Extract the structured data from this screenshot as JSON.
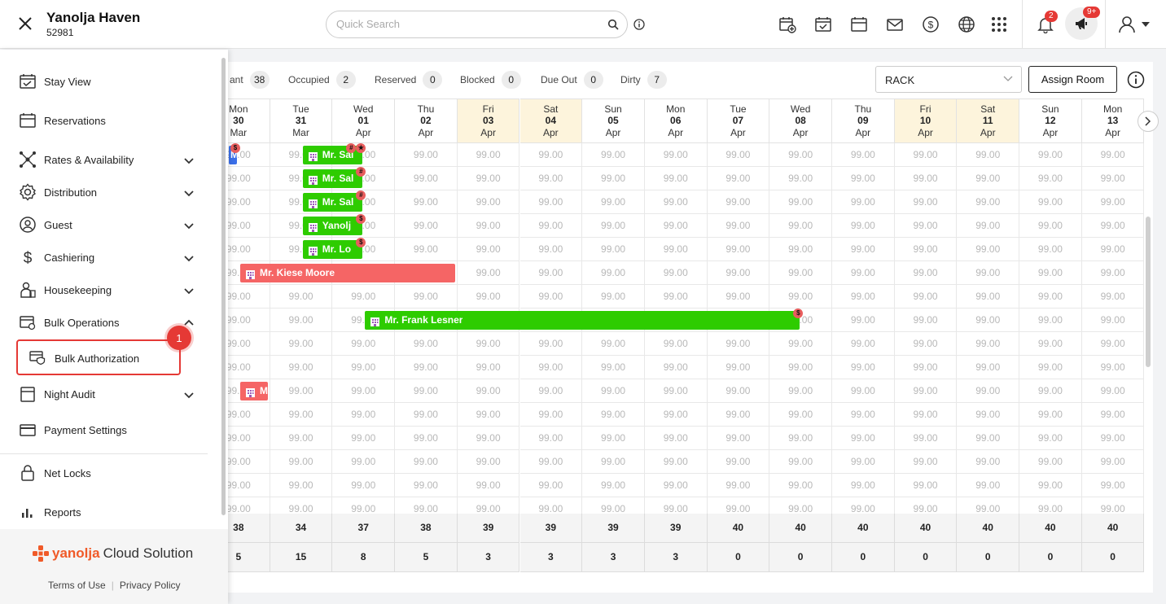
{
  "header": {
    "hotel_name": "Yanolja Haven",
    "hotel_id": "52981",
    "search_placeholder": "Quick Search",
    "notification_count": "2",
    "announcement_count": "9+"
  },
  "sidebar": {
    "items": [
      {
        "label": "Stay View",
        "icon": "stay-view-icon"
      },
      {
        "label": "Reservations",
        "icon": "calendar-icon"
      },
      {
        "label": "Rates & Availability",
        "icon": "network-icon"
      },
      {
        "label": "Distribution",
        "icon": "gear-icon"
      },
      {
        "label": "Guest",
        "icon": "guest-icon"
      },
      {
        "label": "Cashiering",
        "icon": "dollar-icon"
      },
      {
        "label": "Housekeeping",
        "icon": "housekeeping-icon"
      },
      {
        "label": "Bulk Operations",
        "icon": "bulk-operations-icon"
      },
      {
        "label": "Night Audit",
        "icon": "night-audit-icon"
      },
      {
        "label": "Payment Settings",
        "icon": "card-icon"
      },
      {
        "label": "Net Locks",
        "icon": "lock-icon"
      },
      {
        "label": "Reports",
        "icon": "bar-chart-icon"
      }
    ],
    "submenu_item": "Bulk Authorization",
    "step_badge": "1",
    "brand_logo": "yanolja",
    "brand_suffix": "Cloud Solution",
    "terms_label": "Terms of Use",
    "privacy_label": "Privacy Policy"
  },
  "stats": {
    "vacant_label": "ant",
    "vacant": "38",
    "occupied_label": "Occupied",
    "occupied": "2",
    "reserved_label": "Reserved",
    "reserved": "0",
    "blocked_label": "Blocked",
    "blocked": "0",
    "due_out_label": "Due Out",
    "due_out": "0",
    "dirty_label": "Dirty",
    "dirty": "7"
  },
  "controls": {
    "rate_plan": "RACK",
    "assign_room_label": "Assign Room"
  },
  "calendar": {
    "days": [
      {
        "dow": "Mon",
        "day": "30",
        "mon": "Mar",
        "weekend": false
      },
      {
        "dow": "Tue",
        "day": "31",
        "mon": "Mar",
        "weekend": false
      },
      {
        "dow": "Wed",
        "day": "01",
        "mon": "Apr",
        "weekend": false
      },
      {
        "dow": "Thu",
        "day": "02",
        "mon": "Apr",
        "weekend": false
      },
      {
        "dow": "Fri",
        "day": "03",
        "mon": "Apr",
        "weekend": true
      },
      {
        "dow": "Sat",
        "day": "04",
        "mon": "Apr",
        "weekend": true
      },
      {
        "dow": "Sun",
        "day": "05",
        "mon": "Apr",
        "weekend": false
      },
      {
        "dow": "Mon",
        "day": "06",
        "mon": "Apr",
        "weekend": false
      },
      {
        "dow": "Tue",
        "day": "07",
        "mon": "Apr",
        "weekend": false
      },
      {
        "dow": "Wed",
        "day": "08",
        "mon": "Apr",
        "weekend": false
      },
      {
        "dow": "Thu",
        "day": "09",
        "mon": "Apr",
        "weekend": false
      },
      {
        "dow": "Fri",
        "day": "10",
        "mon": "Apr",
        "weekend": true
      },
      {
        "dow": "Sat",
        "day": "11",
        "mon": "Apr",
        "weekend": true
      },
      {
        "dow": "Sun",
        "day": "12",
        "mon": "Apr",
        "weekend": false
      },
      {
        "dow": "Mon",
        "day": "13",
        "mon": "Apr",
        "weekend": false
      }
    ],
    "rate": "99.00",
    "rows": 16,
    "bookings": [
      {
        "row": 0,
        "start": 0,
        "end": 0,
        "name": "M",
        "color": "blue",
        "pins": [
          "$"
        ]
      },
      {
        "row": 0,
        "start": 1,
        "end": 1,
        "name": "Mr. Sal",
        "color": "green",
        "pins": [
          "★",
          "#"
        ]
      },
      {
        "row": 1,
        "start": 1,
        "end": 1,
        "name": "Mr. Sal",
        "color": "green",
        "pins": [
          "#"
        ]
      },
      {
        "row": 2,
        "start": 1,
        "end": 1,
        "name": "Mr. Sal",
        "color": "green",
        "pins": [
          "#"
        ]
      },
      {
        "row": 3,
        "start": 1,
        "end": 1,
        "name": "Yanolj",
        "color": "green",
        "pins": [
          "$"
        ]
      },
      {
        "row": 4,
        "start": 1,
        "end": 1,
        "name": "Mr. Lo",
        "color": "green",
        "pins": [
          "$"
        ]
      },
      {
        "row": 5,
        "start": 0,
        "end": 3,
        "name": "Mr. Kiese Moore",
        "color": "red",
        "pins": []
      },
      {
        "row": 7,
        "start": 2,
        "end": 8,
        "name": "Mr. Frank Lesner",
        "color": "green",
        "pins": [
          "$"
        ]
      },
      {
        "row": 10,
        "start": 0,
        "end": 0,
        "name": "Mr. Jo",
        "color": "red",
        "pins": []
      }
    ],
    "summary_row1": [
      "38",
      "34",
      "37",
      "38",
      "39",
      "39",
      "39",
      "39",
      "40",
      "40",
      "40",
      "40",
      "40",
      "40",
      "40"
    ],
    "summary_row2": [
      "5",
      "15",
      "8",
      "5",
      "3",
      "3",
      "3",
      "3",
      "0",
      "0",
      "0",
      "0",
      "0",
      "0",
      "0"
    ]
  },
  "colors": {
    "booking_green": "#2ecc00",
    "booking_red": "#f56565",
    "booking_blue": "#3b6fe8",
    "weekend_bg": "#fdf4dc",
    "highlight_red": "#e53935",
    "brand_orange": "#f05a28"
  }
}
